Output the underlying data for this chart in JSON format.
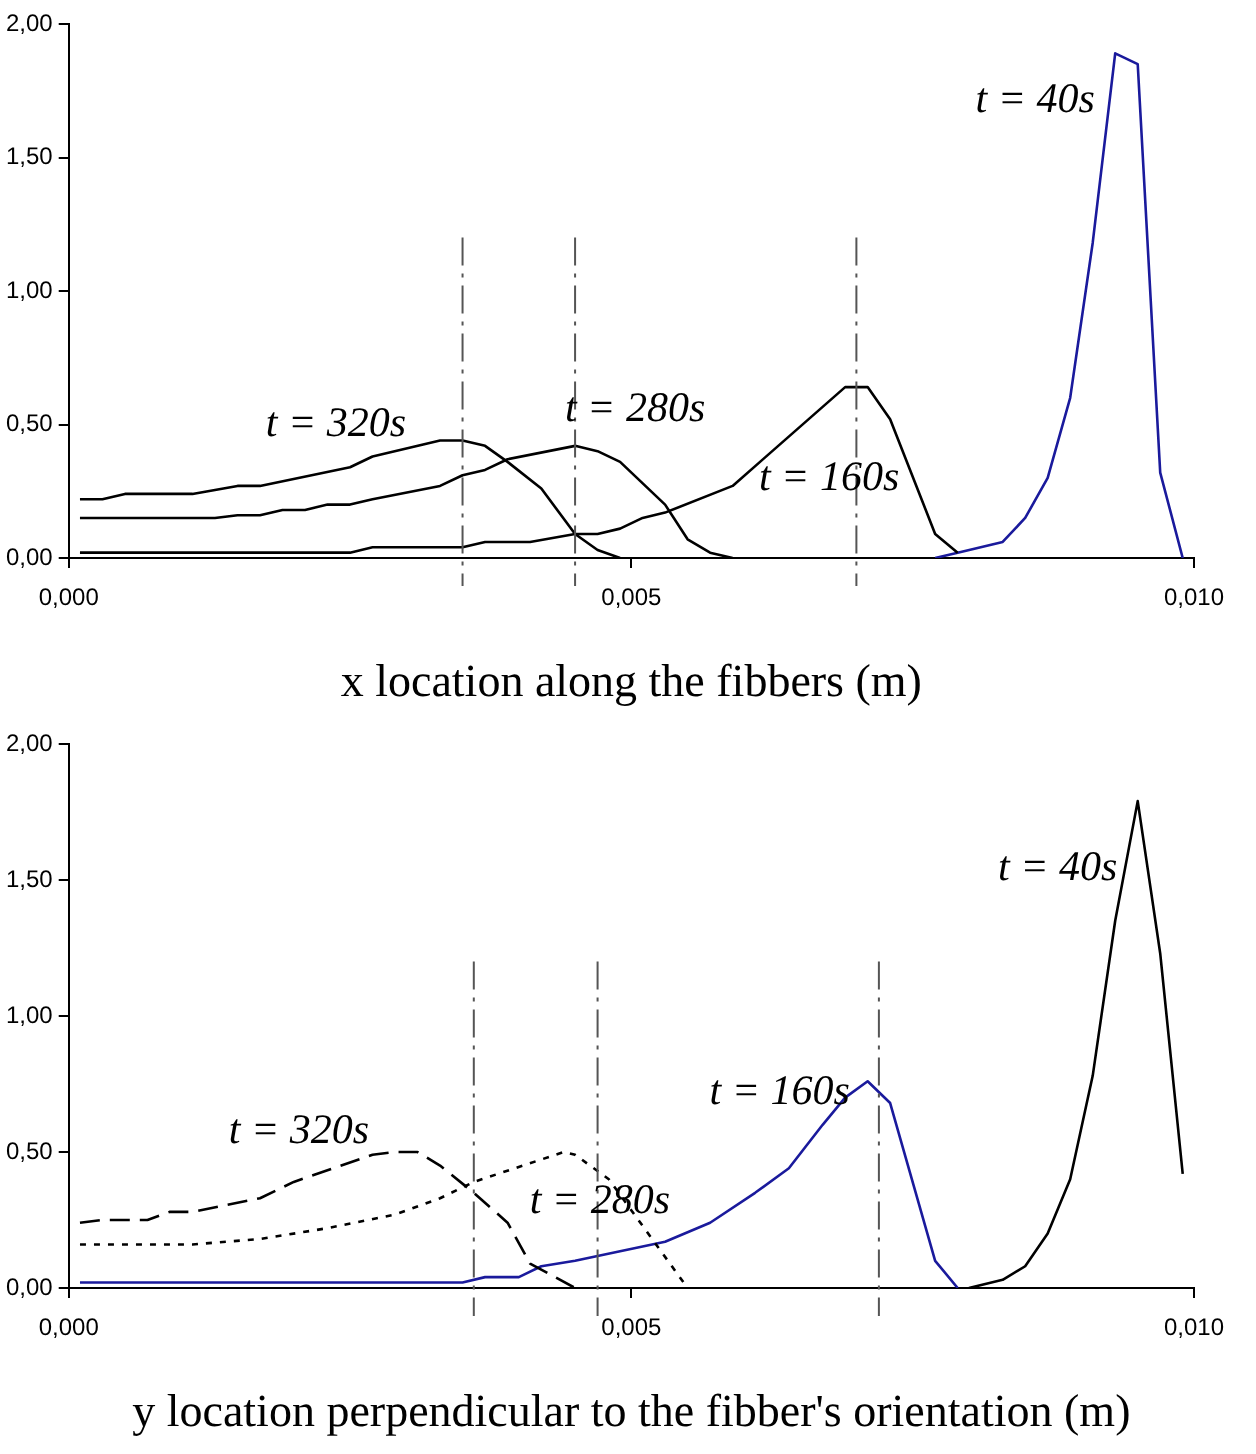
{
  "chart_data": [
    {
      "type": "line",
      "xlabel": "x location along the fibbers (m)",
      "xlim": [
        0,
        0.01
      ],
      "xticks": [
        {
          "value": 0,
          "label": "0,000"
        },
        {
          "value": 0.005,
          "label": "0,005"
        },
        {
          "value": 0.01,
          "label": "0,010"
        }
      ],
      "ylim": [
        0,
        2
      ],
      "yticks": [
        {
          "value": 0,
          "label": "0,00"
        },
        {
          "value": 0.5,
          "label": "0,50"
        },
        {
          "value": 1,
          "label": "1,00"
        },
        {
          "value": 1.5,
          "label": "1,50"
        },
        {
          "value": 2,
          "label": "2,00"
        }
      ],
      "grid": false,
      "legend": false,
      "marker": "none",
      "line_style": "solid",
      "series": [
        {
          "name": "t = 320s",
          "color": "#000000",
          "x": [
            0.0001,
            0.0003,
            0.0005,
            0.0011,
            0.0015,
            0.0017,
            0.0025,
            0.0027,
            0.0033,
            0.0035,
            0.0037,
            0.0039,
            0.0042,
            0.0045,
            0.0047,
            0.0049
          ],
          "values": [
            0.22,
            0.22,
            0.24,
            0.24,
            0.27,
            0.27,
            0.34,
            0.38,
            0.44,
            0.44,
            0.42,
            0.36,
            0.26,
            0.09,
            0.03,
            0
          ]
        },
        {
          "name": "t = 280s",
          "color": "#000000",
          "x": [
            0.0001,
            0.0013,
            0.0015,
            0.0017,
            0.0019,
            0.0021,
            0.0023,
            0.0025,
            0.0027,
            0.0033,
            0.0035,
            0.0037,
            0.0039,
            0.0045,
            0.0047,
            0.0049,
            0.0053,
            0.0055,
            0.0057,
            0.0059
          ],
          "values": [
            0.15,
            0.15,
            0.16,
            0.16,
            0.18,
            0.18,
            0.2,
            0.2,
            0.22,
            0.27,
            0.31,
            0.33,
            0.37,
            0.42,
            0.4,
            0.36,
            0.2,
            0.07,
            0.02,
            0
          ]
        },
        {
          "name": "t = 160s",
          "color": "#000000",
          "x": [
            0.0001,
            0.0025,
            0.0027,
            0.0035,
            0.0037,
            0.0041,
            0.0045,
            0.0047,
            0.0049,
            0.0051,
            0.0053,
            0.0059,
            0.0069,
            0.0071,
            0.0073,
            0.0077,
            0.0079
          ],
          "values": [
            0.02,
            0.02,
            0.04,
            0.04,
            0.06,
            0.06,
            0.09,
            0.09,
            0.11,
            0.15,
            0.17,
            0.27,
            0.64,
            0.64,
            0.52,
            0.09,
            0.02
          ]
        },
        {
          "name": "t = 40s",
          "color": "#1a1a9c",
          "x": [
            0.0077,
            0.0079,
            0.0083,
            0.0085,
            0.0087,
            0.0089,
            0.0091,
            0.0093,
            0.0095,
            0.0097,
            0.0099
          ],
          "values": [
            0,
            0.02,
            0.06,
            0.15,
            0.3,
            0.6,
            1.18,
            1.89,
            1.85,
            0.32,
            0
          ]
        }
      ],
      "ref_lines": [
        {
          "axis": "x",
          "value": 0.0035,
          "color": "#555555",
          "line_style": "dashed"
        },
        {
          "axis": "x",
          "value": 0.0045,
          "color": "#555555",
          "line_style": "dashed"
        },
        {
          "axis": "x",
          "value": 0.007,
          "color": "#555555",
          "line_style": "dashed"
        }
      ]
    },
    {
      "type": "line",
      "xlabel": "y location perpendicular to the fibber's orientation (m)",
      "xlim": [
        0,
        0.01
      ],
      "xticks": [
        {
          "value": 0,
          "label": "0,000"
        },
        {
          "value": 0.005,
          "label": "0,005"
        },
        {
          "value": 0.01,
          "label": "0,010"
        }
      ],
      "ylim": [
        0,
        2
      ],
      "yticks": [
        {
          "value": 0,
          "label": "0,00"
        },
        {
          "value": 0.5,
          "label": "0,50"
        },
        {
          "value": 1,
          "label": "1,00"
        },
        {
          "value": 1.5,
          "label": "1,50"
        },
        {
          "value": 2,
          "label": "2,00"
        }
      ],
      "grid": false,
      "legend": false,
      "marker": "none",
      "line_style": "solid",
      "series": [
        {
          "name": "t = 320s",
          "color": "#000000",
          "line_style": "dashed",
          "x": [
            0.0001,
            0.0003,
            0.0007,
            0.0009,
            0.0011,
            0.0017,
            0.002,
            0.0027,
            0.0029,
            0.0031,
            0.0033,
            0.0036,
            0.0039,
            0.0041,
            0.0045
          ],
          "values": [
            0.24,
            0.25,
            0.25,
            0.28,
            0.28,
            0.33,
            0.39,
            0.49,
            0.5,
            0.5,
            0.45,
            0.35,
            0.24,
            0.09,
            0
          ]
        },
        {
          "name": "t = 280s",
          "color": "#000000",
          "line_style": "dotted",
          "x": [
            0.0001,
            0.0011,
            0.0017,
            0.0023,
            0.0029,
            0.0033,
            0.0036,
            0.0044,
            0.0045,
            0.0048,
            0.0055
          ],
          "values": [
            0.16,
            0.16,
            0.18,
            0.22,
            0.27,
            0.33,
            0.39,
            0.5,
            0.49,
            0.4,
            0
          ]
        },
        {
          "name": "t = 160s",
          "color": "#1a1a9c",
          "x": [
            0.0001,
            0.0035,
            0.0037,
            0.004,
            0.0042,
            0.0045,
            0.0053,
            0.0057,
            0.0061,
            0.0064,
            0.0067,
            0.0069,
            0.0071,
            0.0073,
            0.0077,
            0.0079
          ],
          "values": [
            0.02,
            0.02,
            0.04,
            0.04,
            0.08,
            0.1,
            0.17,
            0.24,
            0.35,
            0.44,
            0.6,
            0.7,
            0.76,
            0.68,
            0.1,
            0
          ]
        },
        {
          "name": "t = 40s",
          "color": "#000000",
          "x": [
            0.008,
            0.0083,
            0.0085,
            0.0087,
            0.0089,
            0.0091,
            0.0093,
            0.0095,
            0.0097,
            0.0099
          ],
          "values": [
            0,
            0.03,
            0.08,
            0.2,
            0.4,
            0.78,
            1.35,
            1.79,
            1.23,
            0.42
          ]
        }
      ],
      "ref_lines": [
        {
          "axis": "x",
          "value": 0.0036,
          "color": "#555555",
          "line_style": "dashed"
        },
        {
          "axis": "x",
          "value": 0.0047,
          "color": "#555555",
          "line_style": "dashed"
        },
        {
          "axis": "x",
          "value": 0.0072,
          "color": "#555555",
          "line_style": "dashed"
        }
      ]
    }
  ]
}
